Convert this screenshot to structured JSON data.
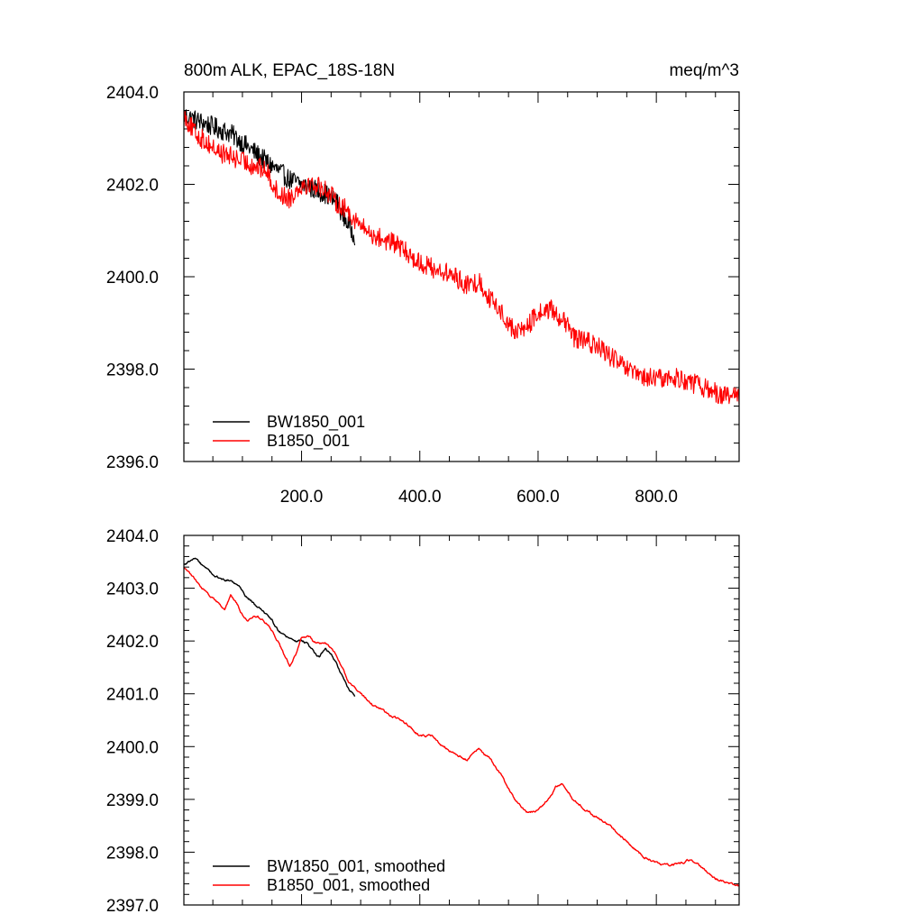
{
  "chart_data": [
    {
      "type": "line",
      "panel": "top",
      "title_left": "800m ALK, EPAC_18S-18N",
      "title_right": "meq/m^3",
      "xlabel": "",
      "ylabel": "",
      "xlim": [
        1,
        940
      ],
      "ylim": [
        2396.0,
        2404.0
      ],
      "x_ticks": [
        200,
        400,
        600,
        800
      ],
      "x_tick_labels": [
        "200.0",
        "400.0",
        "600.0",
        "800.0"
      ],
      "y_ticks": [
        2396,
        2398,
        2400,
        2402,
        2404
      ],
      "y_tick_labels": [
        "2396.0",
        "2398.0",
        "2400.0",
        "2402.0",
        "2404.0"
      ],
      "legend_position": "bottom-left",
      "series": [
        {
          "name": "BW1850_001",
          "color": "#000000",
          "x": [
            1,
            20,
            40,
            60,
            80,
            100,
            120,
            140,
            160,
            180,
            200,
            220,
            240,
            260,
            280,
            290
          ],
          "values": [
            2403.5,
            2403.4,
            2403.3,
            2403.2,
            2403.1,
            2402.9,
            2402.7,
            2402.5,
            2402.3,
            2402.1,
            2402.0,
            2401.9,
            2401.8,
            2401.6,
            2401.1,
            2400.9
          ]
        },
        {
          "name": "B1850_001",
          "color": "#ff0000",
          "x": [
            1,
            20,
            40,
            60,
            80,
            100,
            120,
            140,
            160,
            180,
            200,
            220,
            240,
            260,
            280,
            300,
            320,
            340,
            360,
            380,
            400,
            420,
            440,
            460,
            480,
            500,
            520,
            540,
            560,
            580,
            600,
            620,
            640,
            660,
            680,
            700,
            720,
            740,
            760,
            780,
            800,
            820,
            840,
            860,
            880,
            900,
            920,
            940
          ],
          "values": [
            2403.5,
            2403.1,
            2402.9,
            2402.7,
            2402.6,
            2402.5,
            2402.4,
            2402.3,
            2401.8,
            2401.7,
            2402.0,
            2402.0,
            2401.9,
            2401.6,
            2401.4,
            2401.1,
            2400.9,
            2400.8,
            2400.7,
            2400.5,
            2400.3,
            2400.2,
            2400.1,
            2400.0,
            2399.8,
            2399.9,
            2399.5,
            2399.2,
            2398.8,
            2398.9,
            2399.2,
            2399.3,
            2399.1,
            2398.7,
            2398.6,
            2398.5,
            2398.3,
            2398.1,
            2397.9,
            2397.8,
            2397.8,
            2397.8,
            2397.8,
            2397.7,
            2397.6,
            2397.5,
            2397.4,
            2397.4
          ]
        }
      ]
    },
    {
      "type": "line",
      "panel": "bottom",
      "title_left": "",
      "title_right": "",
      "xlabel": "",
      "ylabel": "",
      "xlim": [
        1,
        940
      ],
      "ylim": [
        2397.0,
        2404.0
      ],
      "x_ticks": [
        200,
        400,
        600,
        800
      ],
      "x_tick_labels": [],
      "y_ticks": [
        2397,
        2398,
        2399,
        2400,
        2401,
        2402,
        2403,
        2404
      ],
      "y_tick_labels": [
        "2397.0",
        "2398.0",
        "2399.0",
        "2400.0",
        "2401.0",
        "2402.0",
        "2403.0",
        "2404.0"
      ],
      "legend_position": "bottom-left",
      "series": [
        {
          "name": "BW1850_001, smoothed",
          "color": "#000000",
          "x": [
            1,
            10,
            20,
            30,
            40,
            50,
            60,
            70,
            80,
            90,
            100,
            110,
            120,
            130,
            140,
            150,
            160,
            170,
            180,
            190,
            200,
            210,
            220,
            230,
            240,
            250,
            260,
            270,
            280,
            290
          ],
          "values": [
            2403.45,
            2403.5,
            2403.55,
            2403.45,
            2403.35,
            2403.25,
            2403.2,
            2403.15,
            2403.15,
            2403.05,
            2402.95,
            2402.8,
            2402.7,
            2402.6,
            2402.5,
            2402.4,
            2402.2,
            2402.1,
            2402.05,
            2402.0,
            2402.0,
            2401.95,
            2401.8,
            2401.7,
            2401.85,
            2401.75,
            2401.55,
            2401.3,
            2401.1,
            2400.95
          ]
        },
        {
          "name": "B1850_001, smoothed",
          "color": "#ff0000",
          "x": [
            1,
            20,
            40,
            60,
            70,
            80,
            90,
            100,
            110,
            120,
            130,
            140,
            150,
            160,
            170,
            180,
            190,
            200,
            210,
            220,
            230,
            240,
            250,
            260,
            270,
            280,
            300,
            320,
            340,
            360,
            380,
            400,
            420,
            440,
            460,
            480,
            500,
            520,
            540,
            560,
            580,
            600,
            620,
            630,
            640,
            660,
            680,
            700,
            720,
            740,
            760,
            780,
            800,
            820,
            840,
            860,
            880,
            900,
            920,
            940
          ],
          "values": [
            2403.4,
            2403.15,
            2402.9,
            2402.7,
            2402.6,
            2402.85,
            2402.7,
            2402.5,
            2402.4,
            2402.5,
            2402.45,
            2402.35,
            2402.2,
            2402.0,
            2401.75,
            2401.55,
            2401.75,
            2402.05,
            2402.1,
            2402.0,
            2401.95,
            2401.95,
            2401.85,
            2401.7,
            2401.5,
            2401.2,
            2401.0,
            2400.8,
            2400.65,
            2400.55,
            2400.4,
            2400.2,
            2400.2,
            2400.0,
            2399.85,
            2399.75,
            2399.95,
            2399.75,
            2399.4,
            2399.0,
            2398.75,
            2398.8,
            2399.05,
            2399.25,
            2399.3,
            2399.0,
            2398.8,
            2398.65,
            2398.5,
            2398.3,
            2398.1,
            2397.9,
            2397.8,
            2397.75,
            2397.8,
            2397.85,
            2397.7,
            2397.5,
            2397.4,
            2397.35
          ]
        }
      ]
    }
  ]
}
